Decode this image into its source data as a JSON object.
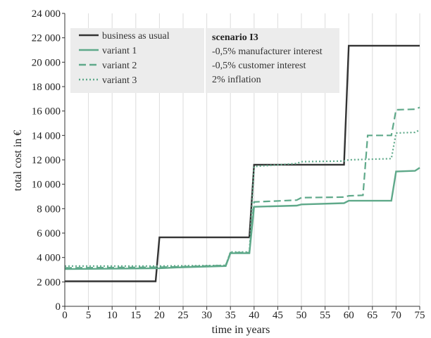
{
  "chart_data": {
    "type": "line",
    "xlabel": "time in years",
    "ylabel": "total cost in €",
    "xlim": [
      0,
      75
    ],
    "ylim": [
      0,
      24000
    ],
    "xticks": [
      "0",
      "5",
      "10",
      "15",
      "20",
      "25",
      "30",
      "35",
      "40",
      "45",
      "50",
      "55",
      "60",
      "65",
      "70",
      "75"
    ],
    "yticks": [
      "0",
      "2 000",
      "4 000",
      "6 000",
      "8 000",
      "10 000",
      "12 000",
      "14 000",
      "16 000",
      "18 000",
      "20 000",
      "22 000",
      "24 000"
    ],
    "grid": "vertical",
    "legend_position": "top-left",
    "series": [
      {
        "name": "business as usual",
        "color": "#333333",
        "style": "solid",
        "points": [
          [
            0,
            2050
          ],
          [
            19.2,
            2050
          ],
          [
            20,
            5650
          ],
          [
            39,
            5650
          ],
          [
            40,
            11600
          ],
          [
            59,
            11600
          ],
          [
            60,
            21350
          ],
          [
            75,
            21350
          ]
        ]
      },
      {
        "name": "variant 1",
        "color": "#5fa98a",
        "style": "solid",
        "points": [
          [
            0,
            3050
          ],
          [
            20,
            3120
          ],
          [
            25,
            3200
          ],
          [
            34,
            3300
          ],
          [
            35,
            4350
          ],
          [
            39,
            4350
          ],
          [
            40,
            8150
          ],
          [
            49,
            8250
          ],
          [
            50,
            8350
          ],
          [
            59,
            8450
          ],
          [
            60,
            8650
          ],
          [
            69,
            8650
          ],
          [
            70,
            11050
          ],
          [
            74,
            11100
          ],
          [
            75,
            11350
          ]
        ]
      },
      {
        "name": "variant 2",
        "color": "#5fa98a",
        "style": "dashed",
        "points": [
          [
            0,
            3150
          ],
          [
            20,
            3200
          ],
          [
            25,
            3250
          ],
          [
            34,
            3350
          ],
          [
            35,
            4400
          ],
          [
            39,
            4400
          ],
          [
            40,
            8550
          ],
          [
            49,
            8700
          ],
          [
            50,
            8900
          ],
          [
            59,
            8950
          ],
          [
            60,
            9050
          ],
          [
            63,
            9100
          ],
          [
            64,
            14000
          ],
          [
            69,
            14000
          ],
          [
            70,
            16100
          ],
          [
            74,
            16150
          ],
          [
            75,
            16300
          ]
        ]
      },
      {
        "name": "variant 3",
        "color": "#5fa98a",
        "style": "dotted",
        "points": [
          [
            0,
            3300
          ],
          [
            20,
            3300
          ],
          [
            34,
            3350
          ],
          [
            35,
            4450
          ],
          [
            39,
            4450
          ],
          [
            40,
            11450
          ],
          [
            49,
            11700
          ],
          [
            50,
            11850
          ],
          [
            59,
            11900
          ],
          [
            60,
            12000
          ],
          [
            69,
            12100
          ],
          [
            70,
            14200
          ],
          [
            74,
            14250
          ],
          [
            75,
            14450
          ]
        ]
      }
    ],
    "annotation": {
      "title": "scenario I3",
      "lines": [
        "-0,5% manufacturer interest",
        "-0,5% customer interest",
        "2% inflation"
      ]
    }
  }
}
